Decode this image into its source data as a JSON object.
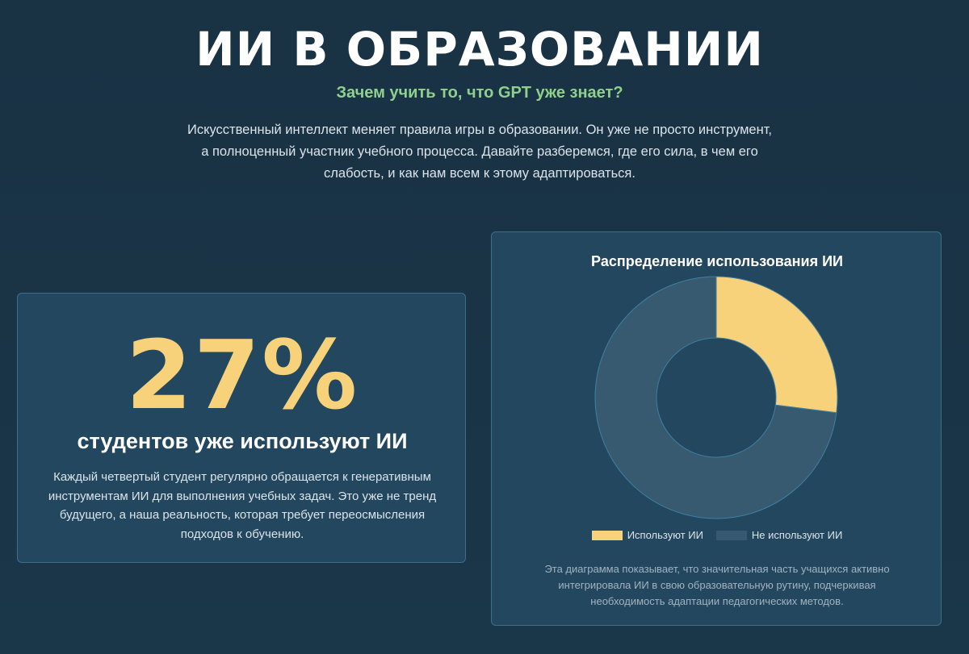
{
  "header": {
    "title": "ИИ В ОБРАЗОВАНИИ",
    "subtitle": "Зачем учить то, что GPT уже знает?",
    "intro": "Искусственный интеллект меняет правила игры в образовании. Он уже не просто инструмент, а полноценный участник учебного процесса. Давайте разберемся, где его сила, в чем его слабость, и как нам всем к этому адаптироваться."
  },
  "stat_card": {
    "value": "27%",
    "caption": "студентов уже используют ИИ",
    "description": "Каждый четвертый студент регулярно обращается к генеративным инструментам ИИ для выполнения учебных задач. Это уже не тренд будущего, а наша реальность, которая требует переосмысления подходов к обучению."
  },
  "chart_card": {
    "note": "Эта диаграмма показывает, что значительная часть учащихся активно интегрировала ИИ в свою образовательную рутину, подчеркивая необходимость адаптации педагогических методов."
  },
  "chart_data": {
    "type": "pie",
    "donut": true,
    "title": "Распределение использования ИИ",
    "categories": [
      "Используют ИИ",
      "Не используют ИИ"
    ],
    "values": [
      27,
      73
    ],
    "colors": [
      "#f7d27a",
      "#385a70"
    ],
    "legend_position": "bottom"
  }
}
